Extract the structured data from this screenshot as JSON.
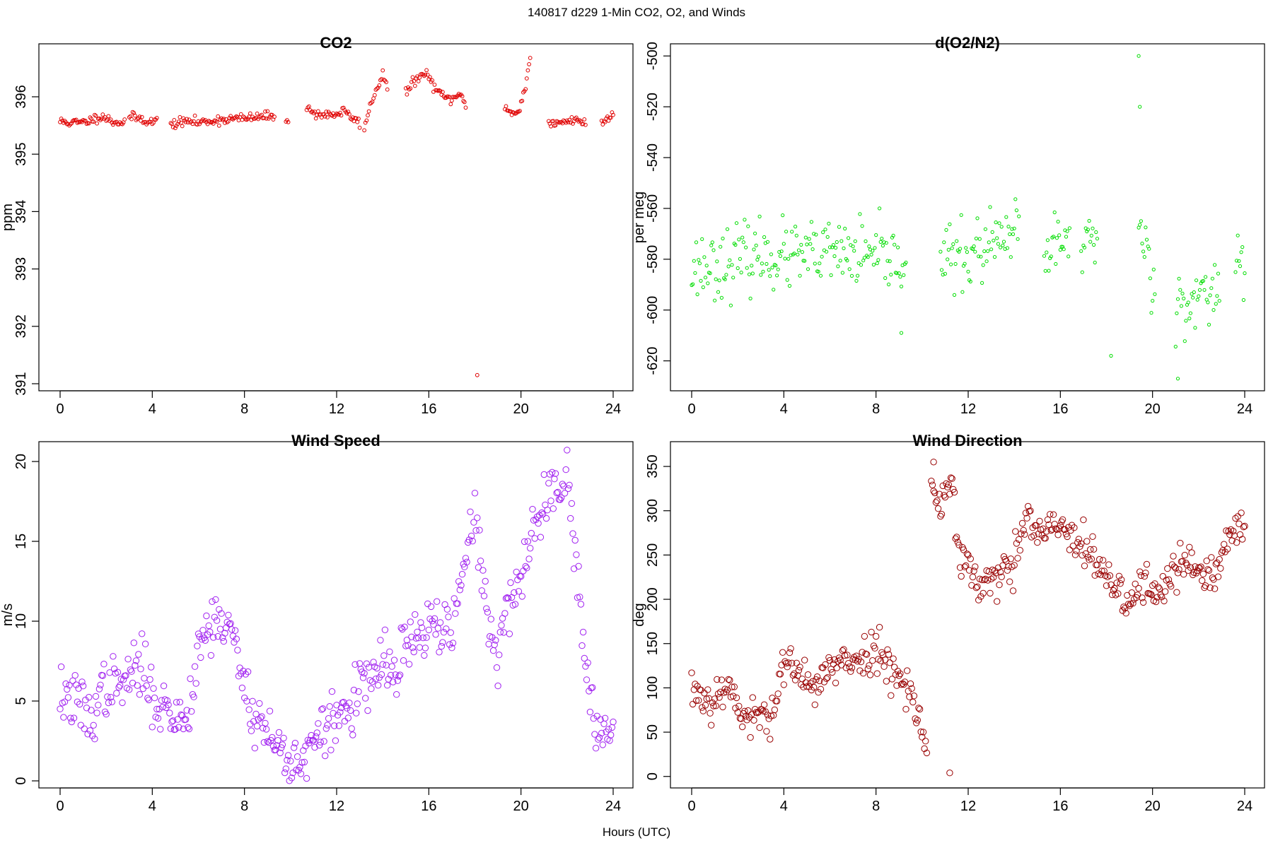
{
  "figure": {
    "suptitle": "140817   d229   1-Min CO2, O2, and Winds",
    "xlabel": "Hours (UTC)"
  },
  "chart_data": [
    {
      "id": "co2",
      "type": "scatter",
      "title": "CO2",
      "xlabel": "",
      "ylabel": "ppm",
      "xlim": [
        0,
        24
      ],
      "ylim": [
        391,
        396.8
      ],
      "xticks": [
        0,
        4,
        8,
        12,
        16,
        20,
        24
      ],
      "yticks": [
        391,
        392,
        393,
        394,
        395,
        396
      ],
      "color": "#e00000",
      "marker_size": 2.4,
      "segments": [
        {
          "x": [
            0,
            0.5,
            1.0,
            1.5,
            1.8,
            2.2,
            2.6,
            2.8
          ],
          "y": [
            395.57,
            395.55,
            395.55,
            395.62,
            395.67,
            395.58,
            395.55,
            395.57
          ]
        },
        {
          "x": [
            3.0,
            3.5,
            4.0,
            4.2
          ],
          "y": [
            395.65,
            395.62,
            395.55,
            395.6
          ]
        },
        {
          "x": [
            4.8,
            5.2,
            5.6,
            6.0,
            6.5,
            7.0,
            7.5,
            8.0,
            8.5,
            9.0,
            9.3
          ],
          "y": [
            395.52,
            395.55,
            395.58,
            395.55,
            395.58,
            395.6,
            395.62,
            395.62,
            395.64,
            395.66,
            395.66
          ]
        },
        {
          "x": [
            9.8,
            9.9
          ],
          "y": [
            395.63,
            395.62
          ]
        },
        {
          "x": [
            10.7,
            11.0,
            11.5,
            12.0,
            12.3,
            12.7,
            13.0
          ],
          "y": [
            395.8,
            395.72,
            395.68,
            395.7,
            395.75,
            395.62,
            395.55
          ]
        },
        {
          "x": [
            13.2,
            13.5,
            13.8,
            14.0,
            14.2
          ],
          "y": [
            395.45,
            395.9,
            396.2,
            396.4,
            396.15
          ]
        },
        {
          "x": [
            15.0,
            15.3,
            15.6,
            15.9,
            16.2,
            16.6,
            17.0,
            17.3,
            17.6
          ],
          "y": [
            396.05,
            396.25,
            396.35,
            396.4,
            396.2,
            396.0,
            395.95,
            396.05,
            395.85
          ]
        },
        {
          "x": [
            19.3,
            19.6,
            19.9,
            20.2,
            20.4
          ],
          "y": [
            395.85,
            395.7,
            395.75,
            396.2,
            396.65
          ]
        },
        {
          "x": [
            21.2,
            21.6,
            22.0,
            22.4,
            22.8
          ],
          "y": [
            395.55,
            395.52,
            395.58,
            395.62,
            395.52
          ]
        },
        {
          "x": [
            23.5,
            23.8,
            24.0
          ],
          "y": [
            395.55,
            395.62,
            395.75
          ]
        }
      ],
      "points": [
        {
          "x": 18.1,
          "y": 391.15
        }
      ]
    },
    {
      "id": "o2",
      "type": "scatter",
      "title": "d(O2/N2)",
      "xlabel": "",
      "ylabel": "per meg",
      "xlim": [
        0,
        24
      ],
      "ylim": [
        -629,
        -498
      ],
      "xticks": [
        0,
        4,
        8,
        12,
        16,
        20,
        24
      ],
      "yticks": [
        -620,
        -600,
        -580,
        -560,
        -540,
        -520,
        -500
      ],
      "color": "#00dd00",
      "marker_size": 2.1,
      "segments": [
        {
          "x": [
            0,
            1,
            2,
            3,
            4,
            5,
            6,
            7,
            8,
            9,
            9.3
          ],
          "y": [
            -583,
            -582,
            -580,
            -578,
            -579,
            -579,
            -578,
            -578,
            -580,
            -580,
            -580
          ]
        },
        {
          "x": [
            10.8,
            12,
            13,
            14.2
          ],
          "y": [
            -580,
            -579,
            -575,
            -570
          ]
        },
        {
          "x": [
            15.3,
            15.8,
            16.2,
            16.4
          ],
          "y": [
            -582,
            -572,
            -575,
            -573
          ]
        },
        {
          "x": [
            16.9,
            17.3,
            17.6
          ],
          "y": [
            -572,
            -570,
            -575
          ]
        },
        {
          "x": [
            19.4,
            19.8,
            20.1
          ],
          "y": [
            -565,
            -580,
            -590
          ]
        },
        {
          "x": [
            21.0,
            21.7,
            22.4,
            22.9
          ],
          "y": [
            -597,
            -595,
            -597,
            -588
          ]
        },
        {
          "x": [
            23.6,
            24.0
          ],
          "y": [
            -578,
            -582
          ]
        }
      ],
      "points": [
        {
          "x": 18.2,
          "y": -618
        },
        {
          "x": 19.4,
          "y": -500
        },
        {
          "x": 19.45,
          "y": -520
        },
        {
          "x": 21.1,
          "y": -627
        },
        {
          "x": 9.1,
          "y": -609
        }
      ]
    },
    {
      "id": "ws",
      "type": "scatter",
      "title": "Wind Speed",
      "xlabel": "",
      "ylabel": "m/s",
      "xlim": [
        0,
        24
      ],
      "ylim": [
        0,
        20.8
      ],
      "xticks": [
        0,
        4,
        8,
        12,
        16,
        20,
        24
      ],
      "yticks": [
        0,
        5,
        10,
        15,
        20
      ],
      "color": "#a020f0",
      "marker_size": 4.2,
      "segments": [
        {
          "x": [
            0,
            0.5,
            1.0,
            1.3,
            1.6,
            2.0,
            2.5,
            3.0,
            3.5,
            4.0,
            4.5,
            5.0,
            5.5,
            6.0,
            6.5,
            7.0,
            7.5,
            8.0,
            8.5,
            9.0,
            9.5,
            10.0,
            10.5,
            11.0,
            11.5,
            12.0,
            12.5,
            13.0,
            13.5,
            14.0,
            14.5,
            15.0,
            15.5,
            16.0,
            16.5,
            17.0,
            17.5,
            18.0,
            18.5,
            19.0,
            19.5,
            20.0,
            20.5,
            21.0,
            21.5,
            22.0,
            22.5,
            23.0,
            23.5,
            24.0
          ],
          "y": [
            5.5,
            5.0,
            4.6,
            3.6,
            5.0,
            6.0,
            5.8,
            6.5,
            7.2,
            5.5,
            4.5,
            4.0,
            3.9,
            8.5,
            9.8,
            10.2,
            9.0,
            6.0,
            4.0,
            3.0,
            2.0,
            1.2,
            1.4,
            2.0,
            3.5,
            3.8,
            4.5,
            5.8,
            6.0,
            7.5,
            6.5,
            8.5,
            8.8,
            9.5,
            10.0,
            9.0,
            13.0,
            17.0,
            11.0,
            7.0,
            12.0,
            12.5,
            15.5,
            17.5,
            18.5,
            19.5,
            12.0,
            4.0,
            3.0,
            3.5
          ]
        }
      ],
      "points": []
    },
    {
      "id": "wd",
      "type": "scatter",
      "title": "Wind Direction",
      "xlabel": "",
      "ylabel": "deg",
      "xlim": [
        0,
        24
      ],
      "ylim": [
        -5,
        370
      ],
      "xticks": [
        0,
        4,
        8,
        12,
        16,
        20,
        24
      ],
      "yticks": [
        0,
        50,
        100,
        150,
        200,
        250,
        300,
        350
      ],
      "color": "#990000",
      "marker_size": 4.2,
      "segments": [
        {
          "x": [
            0,
            0.5,
            1.0,
            1.5,
            2.0,
            2.5,
            3.0,
            3.5,
            4.0,
            4.5,
            5.0,
            5.5,
            6.0,
            6.5,
            7.0,
            7.5,
            8.0,
            8.5,
            9.0,
            9.5,
            9.8,
            10.2
          ],
          "y": [
            100,
            90,
            85,
            110,
            80,
            60,
            70,
            75,
            130,
            115,
            105,
            110,
            120,
            125,
            130,
            138,
            142,
            130,
            115,
            100,
            70,
            30
          ]
        },
        {
          "x": [
            10.4,
            10.8,
            11.0,
            11.3,
            11.6,
            12.0,
            12.5,
            13.0,
            13.5,
            14.0,
            14.2,
            14.6,
            15.0,
            15.5,
            16.0,
            16.5,
            17.0,
            17.5,
            18.0,
            18.5,
            19.0,
            19.5,
            20.0,
            20.5,
            21.0,
            21.5,
            22.0,
            22.5,
            23.0,
            23.5,
            24.0
          ],
          "y": [
            330,
            300,
            320,
            340,
            250,
            240,
            210,
            220,
            230,
            235,
            270,
            290,
            270,
            280,
            285,
            265,
            260,
            240,
            220,
            215,
            190,
            220,
            210,
            220,
            230,
            240,
            235,
            220,
            240,
            285,
            270
          ]
        }
      ],
      "points": [
        {
          "x": 11.2,
          "y": 4
        },
        {
          "x": 10.5,
          "y": 355
        }
      ]
    }
  ]
}
